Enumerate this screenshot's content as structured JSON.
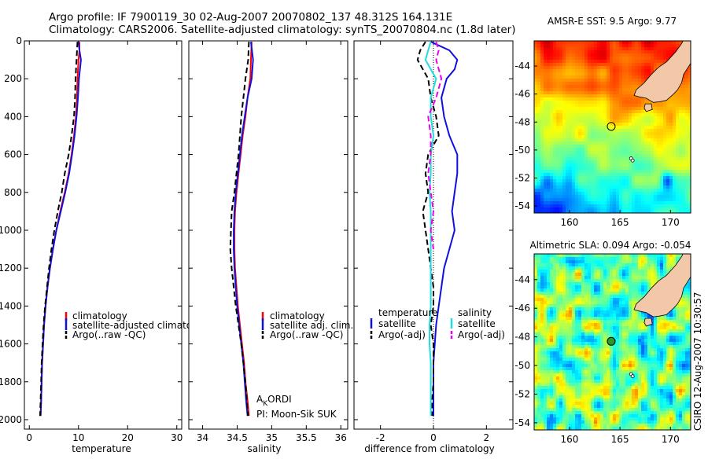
{
  "header": {
    "line1": "Argo profile: IF 7900119_30 02-Aug-2007 20070802_137 48.312S 164.131E",
    "line2": "Climatology: CARS2006. Satellite-adjusted climatology: synTS_20070804.nc (1.8d later)"
  },
  "colors": {
    "climatology": "#ff0000",
    "satellite": "#1010dd",
    "argo": "#000000",
    "sal_satellite": "#22dddd",
    "sal_argo": "#ee00ee",
    "land": "#f2c8a8"
  },
  "chart_data": [
    {
      "type": "line",
      "xlabel": "temperature",
      "ylim": [
        2050,
        0
      ],
      "xlim": [
        -1,
        31
      ],
      "xticks": [
        0,
        10,
        20,
        30
      ],
      "yticks": [
        0,
        200,
        400,
        600,
        800,
        1000,
        1200,
        1400,
        1600,
        1800,
        2000
      ],
      "legend": [
        "climatology",
        "satellite-adjusted climatology",
        "Argo(..raw -QC)"
      ],
      "series": [
        {
          "name": "climatology",
          "style": "solid",
          "color": "#ff0000",
          "depth": [
            5,
            50,
            100,
            200,
            300,
            400,
            500,
            600,
            700,
            800,
            900,
            1000,
            1100,
            1200,
            1300,
            1400,
            1500,
            1600,
            1700,
            1800,
            1900,
            1980
          ],
          "values": [
            10.2,
            10.2,
            10.0,
            9.8,
            9.7,
            9.5,
            9.1,
            8.6,
            8.0,
            7.2,
            6.3,
            5.5,
            4.8,
            4.2,
            3.7,
            3.3,
            3.0,
            2.8,
            2.6,
            2.5,
            2.4,
            2.3
          ]
        },
        {
          "name": "satellite-adjusted climatology",
          "style": "solid",
          "color": "#1010dd",
          "depth": [
            5,
            50,
            100,
            200,
            300,
            400,
            500,
            600,
            700,
            800,
            900,
            1000,
            1100,
            1200,
            1300,
            1400,
            1500,
            1600,
            1700,
            1800,
            1900,
            1980
          ],
          "values": [
            10.0,
            10.2,
            10.5,
            10.1,
            9.9,
            9.6,
            9.2,
            8.7,
            8.1,
            7.3,
            6.4,
            5.5,
            4.8,
            4.2,
            3.7,
            3.3,
            3.0,
            2.8,
            2.6,
            2.5,
            2.4,
            2.3
          ]
        },
        {
          "name": "Argo(..raw -QC)",
          "style": "dashed",
          "color": "#000000",
          "depth": [
            5,
            50,
            100,
            200,
            300,
            400,
            500,
            600,
            700,
            800,
            900,
            1000,
            1100,
            1200,
            1300,
            1400,
            1500,
            1600,
            1700,
            1800,
            1900,
            1980
          ],
          "values": [
            9.8,
            9.7,
            9.6,
            9.4,
            9.3,
            9.1,
            8.6,
            8.0,
            7.2,
            6.6,
            5.8,
            5.1,
            4.5,
            4.0,
            3.6,
            3.2,
            2.9,
            2.7,
            2.5,
            2.4,
            2.3,
            2.2
          ]
        }
      ]
    },
    {
      "type": "line",
      "xlabel": "salinity",
      "ylim": [
        2050,
        0
      ],
      "xlim": [
        33.8,
        36.1
      ],
      "xticks": [
        34,
        34.5,
        35,
        35.5,
        36
      ],
      "legend": [
        "climatology",
        "satellite adj. clim.",
        "Argo(..raw -QC)"
      ],
      "annotation": [
        "AKORDI",
        "PI: Moon-Sik SUK"
      ],
      "series": [
        {
          "name": "climatology",
          "style": "solid",
          "color": "#ff0000",
          "depth": [
            5,
            100,
            200,
            300,
            400,
            500,
            600,
            700,
            800,
            900,
            1000,
            1100,
            1200,
            1300,
            1400,
            1500,
            1600,
            1700,
            1800,
            1900,
            1980
          ],
          "values": [
            34.71,
            34.7,
            34.69,
            34.65,
            34.62,
            34.58,
            34.55,
            34.52,
            34.49,
            34.47,
            34.46,
            34.46,
            34.47,
            34.49,
            34.51,
            34.54,
            34.57,
            34.6,
            34.62,
            34.65,
            34.67
          ]
        },
        {
          "name": "satellite adj. clim.",
          "style": "solid",
          "color": "#1010dd",
          "depth": [
            5,
            100,
            200,
            300,
            400,
            500,
            600,
            700,
            800,
            900,
            1000,
            1100,
            1200,
            1300,
            1400,
            1500,
            1600,
            1700,
            1800,
            1900,
            1980
          ],
          "values": [
            34.7,
            34.73,
            34.71,
            34.65,
            34.61,
            34.57,
            34.54,
            34.51,
            34.48,
            34.46,
            34.45,
            34.45,
            34.46,
            34.48,
            34.5,
            34.53,
            34.56,
            34.59,
            34.61,
            34.63,
            34.65
          ]
        },
        {
          "name": "Argo(..raw -QC)",
          "style": "dashed",
          "color": "#000000",
          "depth": [
            5,
            100,
            200,
            300,
            400,
            500,
            600,
            700,
            800,
            900,
            1000,
            1100,
            1200,
            1300,
            1400,
            1500,
            1600,
            1700,
            1800,
            1900,
            1980
          ],
          "values": [
            34.67,
            34.66,
            34.62,
            34.59,
            34.56,
            34.54,
            34.52,
            34.49,
            34.46,
            34.42,
            34.41,
            34.4,
            34.42,
            34.45,
            34.48,
            34.52,
            34.56,
            34.59,
            34.62,
            34.64,
            34.66
          ]
        }
      ]
    },
    {
      "type": "line",
      "xlabel": "difference from climatology",
      "ylim": [
        2050,
        0
      ],
      "xlim": [
        -3,
        3
      ],
      "xticks": [
        -2,
        0,
        2
      ],
      "legend": [
        "temperature",
        "satellite",
        "Argo(-adj)",
        "salinity",
        "satellite",
        "Argo(-adj)"
      ],
      "series": [
        {
          "name": "temperature satellite",
          "style": "solid",
          "color": "#1010dd",
          "depth": [
            5,
            50,
            100,
            150,
            200,
            300,
            400,
            500,
            600,
            700,
            800,
            900,
            1000,
            1100,
            1200,
            1300,
            1400,
            1500,
            1600,
            1700,
            1800,
            1900,
            1980
          ],
          "values": [
            -0.1,
            0.6,
            0.9,
            0.8,
            0.5,
            0.3,
            0.4,
            0.6,
            0.9,
            0.9,
            0.8,
            0.7,
            0.8,
            0.6,
            0.4,
            0.3,
            0.2,
            0.1,
            0.05,
            0.0,
            0.0,
            0.0,
            0.0
          ]
        },
        {
          "name": "temperature Argo(-adj)",
          "style": "dashed",
          "color": "#000000",
          "depth": [
            5,
            50,
            100,
            200,
            300,
            400,
            500,
            600,
            700,
            800,
            900,
            1000,
            1100,
            1200,
            1300,
            1400,
            1500,
            1600,
            1700,
            1800,
            1900,
            1980
          ],
          "values": [
            -0.3,
            -0.5,
            -0.6,
            -0.2,
            -0.1,
            0.1,
            0.2,
            -0.2,
            -0.3,
            -0.2,
            -0.4,
            -0.3,
            -0.2,
            -0.1,
            0.0,
            0.0,
            -0.1,
            0.0,
            0.0,
            0.0,
            -0.05,
            -0.05
          ]
        },
        {
          "name": "salinity satellite",
          "style": "solid",
          "color": "#22dddd",
          "depth": [
            5,
            50,
            100,
            200,
            300,
            400,
            500,
            600,
            700,
            800,
            900,
            1000,
            1100,
            1200,
            1300,
            1400,
            1500,
            1600,
            1700,
            1800,
            1900,
            1980
          ],
          "values": [
            -0.1,
            -0.2,
            -0.3,
            0.1,
            -0.1,
            -0.1,
            0.0,
            -0.1,
            -0.1,
            -0.15,
            -0.1,
            -0.1,
            -0.1,
            -0.1,
            -0.1,
            -0.1,
            -0.15,
            -0.15,
            -0.1,
            -0.1,
            -0.1,
            -0.1
          ]
        },
        {
          "name": "salinity Argo(-adj)",
          "style": "dashed",
          "color": "#ee00ee",
          "depth": [
            5,
            50,
            100,
            200,
            300,
            400,
            500,
            600,
            700,
            800,
            900,
            1000,
            1100
          ],
          "values": [
            0.1,
            0.2,
            0.1,
            0.3,
            0.1,
            -0.2,
            -0.1,
            -0.1,
            -0.2,
            -0.1,
            0.0,
            -0.1,
            0.0
          ]
        }
      ]
    },
    {
      "type": "heatmap",
      "title": "AMSR-E SST: 9.5 Argo: 9.77",
      "xticks": [
        160,
        165,
        170
      ],
      "yticks": [
        -44,
        -46,
        -48,
        -50,
        -52,
        -54
      ],
      "xlim": [
        156.5,
        172
      ],
      "ylim": [
        -54.5,
        -42.2
      ],
      "argo_position": {
        "lon": 164.131,
        "lat": -48.312
      }
    },
    {
      "type": "heatmap",
      "title": "Altimetric SLA: 0.094 Argo: -0.054",
      "xticks": [
        160,
        165,
        170
      ],
      "yticks": [
        -44,
        -46,
        -48,
        -50,
        -52,
        -54
      ],
      "xlim": [
        156.5,
        172
      ],
      "ylim": [
        -54.5,
        -42.2
      ],
      "argo_position": {
        "lon": 164.131,
        "lat": -48.312
      }
    }
  ],
  "side_label": "CSIRO 12-Aug-2007 10:30:57"
}
